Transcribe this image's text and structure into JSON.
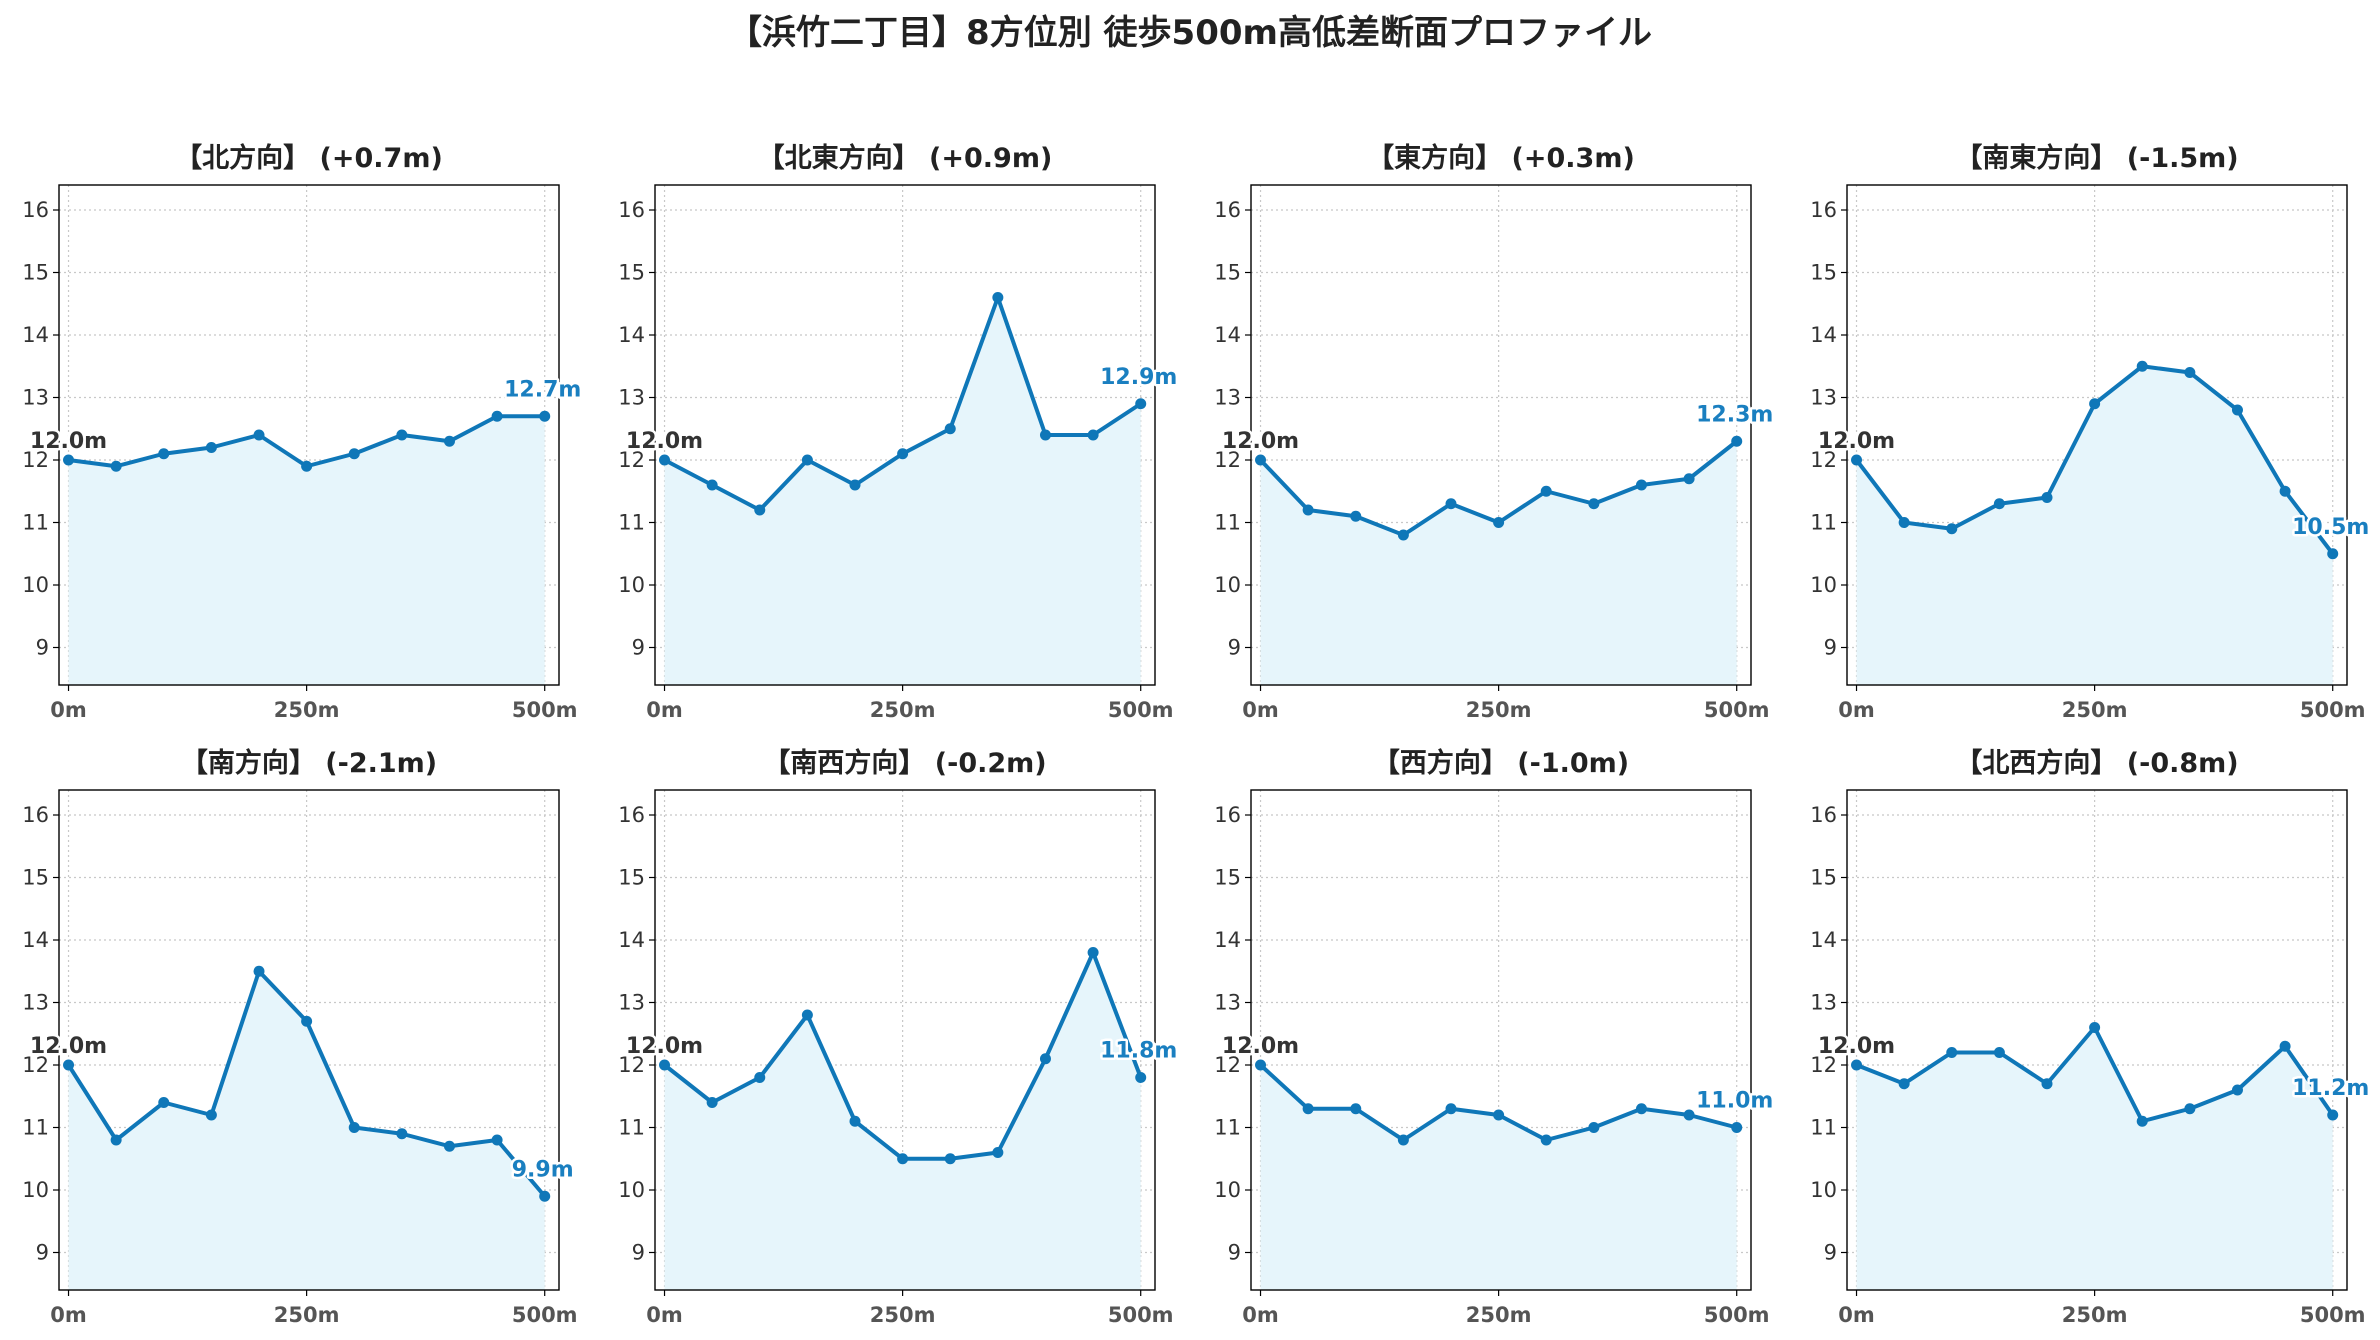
{
  "colors": {
    "line": "#0f77b8",
    "fill": "#e6f5fb",
    "grid": "#c8c8c8",
    "axis": "#000000",
    "start_label": "#333333",
    "end_label": "#1a7fc0"
  },
  "chart_data": {
    "title": "【浜竹二丁目】8方位別 徒歩500m高低差断面プロファイル",
    "type": "area",
    "grid": true,
    "ylim": [
      8.4,
      16.4
    ],
    "yticks": [
      9,
      10,
      11,
      12,
      13,
      14,
      15,
      16
    ],
    "xlim": [
      -10,
      515
    ],
    "x": [
      0,
      50,
      100,
      150,
      200,
      250,
      300,
      350,
      400,
      450,
      500
    ],
    "xticks": [
      0,
      250,
      500
    ],
    "xtick_labels": [
      "0m",
      "250m",
      "500m"
    ],
    "panels": [
      {
        "title": "【北方向】 (+0.7m)",
        "values": [
          12.0,
          11.9,
          12.1,
          12.2,
          12.4,
          11.9,
          12.1,
          12.4,
          12.3,
          12.7,
          12.7
        ],
        "start_label": "12.0m",
        "end_label": "12.7m"
      },
      {
        "title": "【北東方向】 (+0.9m)",
        "values": [
          12.0,
          11.6,
          11.2,
          12.0,
          11.6,
          12.1,
          12.5,
          14.6,
          12.4,
          12.4,
          12.9
        ],
        "start_label": "12.0m",
        "end_label": "12.9m"
      },
      {
        "title": "【東方向】 (+0.3m)",
        "values": [
          12.0,
          11.2,
          11.1,
          10.8,
          11.3,
          11.0,
          11.5,
          11.3,
          11.6,
          11.7,
          12.3
        ],
        "start_label": "12.0m",
        "end_label": "12.3m"
      },
      {
        "title": "【南東方向】 (-1.5m)",
        "values": [
          12.0,
          11.0,
          10.9,
          11.3,
          11.4,
          12.9,
          13.5,
          13.4,
          12.8,
          11.5,
          10.5
        ],
        "start_label": "12.0m",
        "end_label": "10.5m"
      },
      {
        "title": "【南方向】 (-2.1m)",
        "values": [
          12.0,
          10.8,
          11.4,
          11.2,
          13.5,
          12.7,
          11.0,
          10.9,
          10.7,
          10.8,
          9.9
        ],
        "start_label": "12.0m",
        "end_label": "9.9m"
      },
      {
        "title": "【南西方向】 (-0.2m)",
        "values": [
          12.0,
          11.4,
          11.8,
          12.8,
          11.1,
          10.5,
          10.5,
          10.6,
          12.1,
          13.8,
          11.8
        ],
        "start_label": "12.0m",
        "end_label": "11.8m"
      },
      {
        "title": "【西方向】 (-1.0m)",
        "values": [
          12.0,
          11.3,
          11.3,
          10.8,
          11.3,
          11.2,
          10.8,
          11.0,
          11.3,
          11.2,
          11.0
        ],
        "start_label": "12.0m",
        "end_label": "11.0m"
      },
      {
        "title": "【北西方向】 (-0.8m)",
        "values": [
          12.0,
          11.7,
          12.2,
          12.2,
          11.7,
          12.6,
          11.1,
          11.3,
          11.6,
          12.3,
          11.2
        ],
        "start_label": "12.0m",
        "end_label": "11.2m"
      }
    ]
  }
}
